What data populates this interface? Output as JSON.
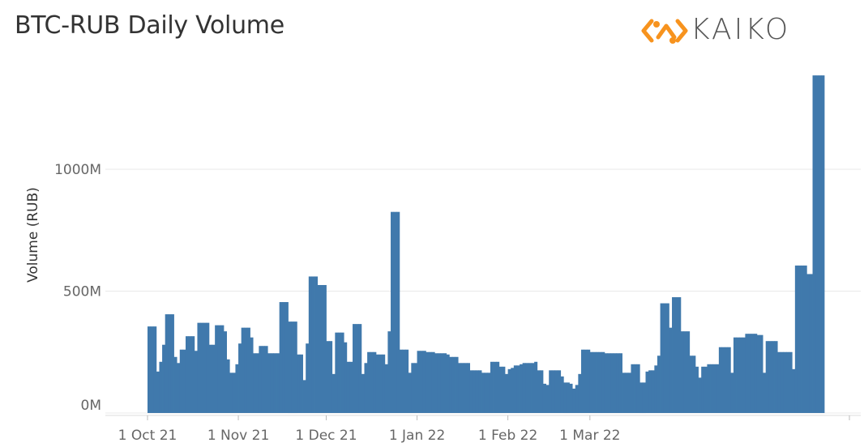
{
  "title": "BTC-RUB Daily Volume",
  "logo": {
    "text": "KAIKO",
    "icon": "kaiko-logo-icon",
    "accent": "#F7931E"
  },
  "colors": {
    "bar": "#4079AC",
    "grid": "#E8E8E8"
  },
  "chart_data": {
    "type": "bar",
    "title": "BTC-RUB Daily Volume",
    "ylabel": "Volume (RUB)",
    "xlabel": "",
    "ylim": [
      0,
      1400
    ],
    "yunit": "M",
    "yticks": [
      {
        "value": 0,
        "label": "0M"
      },
      {
        "value": 500,
        "label": "500M"
      },
      {
        "value": 1000,
        "label": "1000M"
      }
    ],
    "xticks": [
      {
        "index": 0,
        "label": "1 Oct 21"
      },
      {
        "index": 31,
        "label": "1 Nov 21"
      },
      {
        "index": 61,
        "label": "1 Dec 21"
      },
      {
        "index": 92,
        "label": "1 Jan 22"
      },
      {
        "index": 123,
        "label": "1 Feb 22"
      },
      {
        "index": 151,
        "label": "1 Mar 22"
      }
    ],
    "start_date": "2021-10-01",
    "grid": "horizontal",
    "values": [
      355,
      355,
      355,
      170,
      210,
      280,
      405,
      405,
      405,
      230,
      205,
      260,
      260,
      315,
      315,
      315,
      255,
      370,
      370,
      370,
      370,
      280,
      280,
      360,
      360,
      360,
      335,
      220,
      165,
      165,
      200,
      285,
      350,
      350,
      350,
      310,
      245,
      245,
      275,
      275,
      275,
      245,
      245,
      245,
      245,
      455,
      455,
      455,
      375,
      375,
      375,
      240,
      240,
      135,
      285,
      560,
      560,
      560,
      525,
      525,
      525,
      295,
      295,
      160,
      330,
      330,
      330,
      290,
      210,
      210,
      365,
      365,
      365,
      160,
      205,
      250,
      250,
      250,
      240,
      240,
      240,
      200,
      335,
      825,
      825,
      825,
      260,
      260,
      260,
      165,
      205,
      205,
      255,
      255,
      255,
      250,
      250,
      250,
      245,
      245,
      245,
      245,
      240,
      230,
      230,
      230,
      205,
      205,
      205,
      205,
      175,
      175,
      175,
      175,
      165,
      165,
      165,
      210,
      210,
      210,
      190,
      190,
      160,
      180,
      185,
      195,
      195,
      200,
      205,
      205,
      205,
      205,
      210,
      175,
      175,
      120,
      115,
      175,
      175,
      175,
      175,
      150,
      125,
      125,
      120,
      100,
      115,
      160,
      260,
      260,
      260,
      250,
      250,
      250,
      250,
      250,
      245,
      245,
      245,
      245,
      245,
      245,
      165,
      165,
      165,
      200,
      200,
      200,
      125,
      125,
      170,
      175,
      175,
      195,
      235,
      450,
      450,
      450,
      350,
      475,
      475,
      475,
      335,
      335,
      335,
      235,
      235,
      190,
      145,
      190,
      190,
      200,
      200,
      200,
      200,
      270,
      270,
      270,
      270,
      165,
      310,
      310,
      310,
      310,
      325,
      325,
      325,
      325,
      320,
      320,
      165,
      295,
      295,
      295,
      295,
      250,
      250,
      250,
      250,
      250,
      180,
      605,
      605,
      605,
      605,
      570,
      570,
      1385,
      1385,
      1385,
      1385
    ]
  }
}
